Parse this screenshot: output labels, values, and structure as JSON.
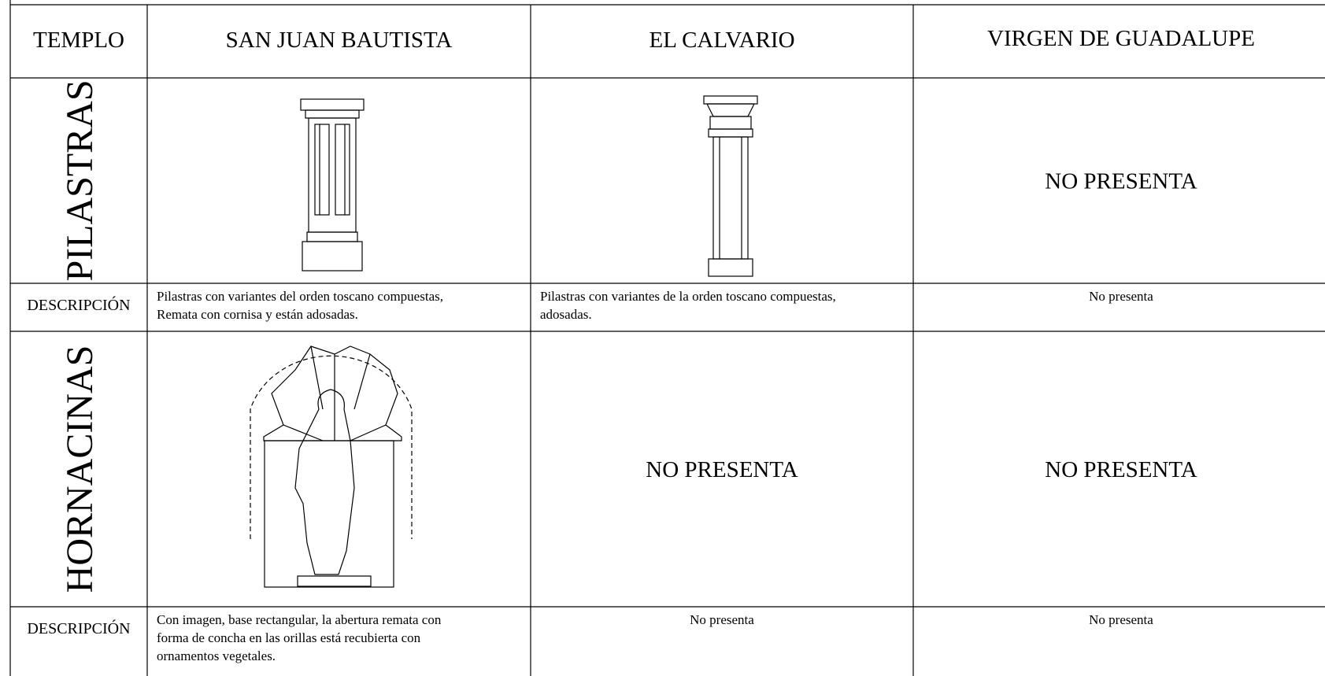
{
  "table": {
    "header": [
      "TEMPLO",
      "SAN JUAN BAUTISTA",
      "EL CALVARIO",
      "VIRGEN DE GUADALUPE"
    ],
    "sections": [
      {
        "label": "PILASTRAS",
        "absent": {
          "3": "NO PRESENTA"
        },
        "description_label": "DESCRIPCIÓN",
        "descriptions": [
          [
            "Pilastras con variantes del orden toscano compuestas,",
            "Remata con cornisa y están adosadas."
          ],
          [
            "Pilastras con variantes de la orden toscano compuestas,",
            "adosadas."
          ],
          [
            "No presenta"
          ]
        ]
      },
      {
        "label": "HORNACINAS",
        "absent": {
          "2": "NO PRESENTA",
          "3": "NO PRESENTA"
        },
        "description_label": "DESCRIPCIÓN",
        "descriptions": [
          [
            "Con imagen, base rectangular, la abertura remata con",
            "forma de concha  en las orillas está recubierta con",
            "ornamentos vegetales."
          ],
          [
            "No presenta"
          ],
          [
            "No presenta"
          ]
        ]
      }
    ]
  }
}
